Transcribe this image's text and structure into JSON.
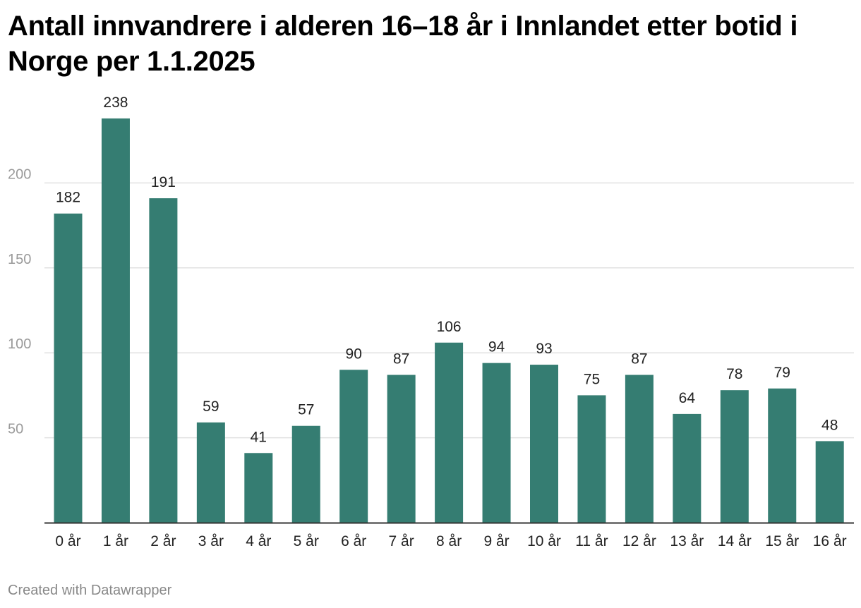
{
  "chart_data": {
    "type": "bar",
    "title": "Antall innvandrere i alderen 16–18 år i Innlandet etter botid i Norge per 1.1.2025",
    "xlabel": "",
    "ylabel": "",
    "categories": [
      "0 år",
      "1 år",
      "2 år",
      "3 år",
      "4 år",
      "5 år",
      "6 år",
      "7 år",
      "8 år",
      "9 år",
      "10 år",
      "11 år",
      "12 år",
      "13 år",
      "14 år",
      "15 år",
      "16 år"
    ],
    "values": [
      182,
      238,
      191,
      59,
      41,
      57,
      90,
      87,
      106,
      94,
      93,
      75,
      87,
      64,
      78,
      79,
      48
    ],
    "ylim": [
      0,
      250
    ],
    "yticks": [
      50,
      100,
      150,
      200
    ],
    "grid": true,
    "data_labels": true,
    "bar_color": "#357d72"
  },
  "footer": {
    "credit": "Created with Datawrapper"
  }
}
